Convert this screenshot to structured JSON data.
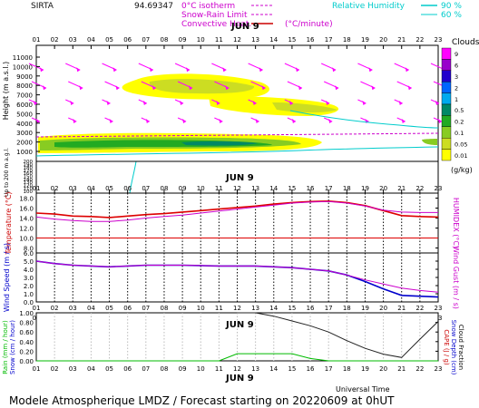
{
  "header": {
    "site": "SIRTA",
    "coords": "94.69347",
    "legend_isotherm": "0°C isotherm",
    "legend_snow_rain": "Snow-Rain Limit",
    "legend_convective": "Convective Heat.",
    "legend_convective_unit": "(°C/minute)",
    "legend_rh": "Relative Humidity",
    "rh_90": "90 %",
    "rh_60": "60 %"
  },
  "date_label": "JUN  9",
  "hours": [
    "01",
    "02",
    "03",
    "04",
    "05",
    "06",
    "07",
    "08",
    "09",
    "10",
    "11",
    "12",
    "13",
    "14",
    "15",
    "16",
    "17",
    "18",
    "19",
    "20",
    "21",
    "22",
    "23"
  ],
  "panel_top": {
    "ylabel_upper": "Height  (m  a.s.l.)",
    "ylabel_lower": "Up to 200 m a.g.l.",
    "yticks_upper": [
      "11000",
      "10000",
      "9000",
      "8000",
      "7000",
      "6000",
      "5000",
      "4000",
      "3000",
      "2000",
      "1000"
    ],
    "yticks_lower": [
      "200",
      "190",
      "180",
      "170",
      "160",
      "150",
      "140",
      "130",
      "120",
      "110",
      "100"
    ],
    "clouds_title": "Clouds",
    "clouds_levels": [
      "9",
      "6",
      "3",
      "2",
      "1",
      "0.5",
      "0.2",
      "0.1",
      "0.05",
      "0.01"
    ],
    "clouds_colors": [
      "#ff00ff",
      "#9900cc",
      "#2200cc",
      "#0066ff",
      "#00aaee",
      "#008866",
      "#22aa22",
      "#88cc22",
      "#ccdd22",
      "#ffff00"
    ],
    "clouds_unit": "(g/kg)"
  },
  "panel_temp": {
    "ylabel": "Temperature (°C)",
    "ylabel_right": "HUMIDEX (°C)",
    "yticks": [
      "18.0",
      "16.0",
      "14.0",
      "12.0",
      "10.0",
      "8.0"
    ]
  },
  "panel_wind": {
    "ylabel": "Wind Speed (m / s)",
    "ylabel_right": "Wind Gust (m / s)",
    "yticks": [
      "6.0",
      "5.0",
      "4.0",
      "3.0",
      "2.0",
      "1.0",
      "0.0"
    ]
  },
  "panel_rain": {
    "ylabel": "Rain (mm / hour)",
    "ylabel2": "Snow (cm / hour)",
    "ylabel_right": "CAPE (J / g)",
    "ylabel_right2": "Snow Depth (cm)",
    "ylabel_right3": "Cloud Fraction",
    "yticks": [
      "1.00",
      "0.80",
      "0.60",
      "0.40",
      "0.20",
      "0.00"
    ],
    "xlabel": "Universal Time"
  },
  "footer": "Modele Atmospherique LMDZ / Forecast starting on 20220609 at 0hUT",
  "chart_data": [
    {
      "type": "line",
      "title": "",
      "x": [
        "01",
        "02",
        "03",
        "04",
        "05",
        "06",
        "07",
        "08",
        "09",
        "10",
        "11",
        "12",
        "13",
        "14",
        "15",
        "16",
        "17",
        "18",
        "19",
        "20",
        "21",
        "22",
        "23"
      ],
      "ylim": [
        7,
        19
      ],
      "series": [
        {
          "name": "Temperature",
          "color": "#dd0000",
          "values": [
            15.0,
            14.8,
            14.4,
            14.3,
            14.1,
            14.4,
            14.7,
            14.9,
            15.2,
            15.5,
            15.8,
            16.1,
            16.4,
            16.8,
            17.1,
            17.3,
            17.4,
            17.1,
            16.5,
            15.5,
            14.5,
            14.3,
            14.2
          ]
        },
        {
          "name": "HUMIDEX",
          "color": "#cc00cc",
          "values": [
            14.2,
            13.8,
            13.5,
            13.3,
            13.3,
            13.6,
            14.0,
            14.3,
            14.6,
            15.0,
            15.4,
            15.8,
            16.2,
            16.6,
            17.0,
            17.2,
            17.3,
            17.0,
            16.4,
            15.6,
            15.2,
            15.1,
            15.1
          ]
        },
        {
          "name": "Reference",
          "color": "#dd0000",
          "values": [
            10.0,
            10.0,
            10.0,
            10.0,
            10.0,
            10.0,
            10.0,
            10.0,
            10.0,
            10.0,
            10.0,
            10.0,
            10.0,
            10.0,
            10.0,
            10.0,
            10.0,
            10.0,
            10.0,
            10.0,
            10.0,
            10.0,
            10.0
          ]
        }
      ]
    },
    {
      "type": "line",
      "title": "",
      "x": [
        "01",
        "02",
        "03",
        "04",
        "05",
        "06",
        "07",
        "08",
        "09",
        "10",
        "11",
        "12",
        "13",
        "14",
        "15",
        "16",
        "17",
        "18",
        "19",
        "20",
        "21",
        "22",
        "23"
      ],
      "ylim": [
        0,
        6
      ],
      "series": [
        {
          "name": "Wind Speed",
          "color": "#0000cc",
          "values": [
            5.0,
            4.7,
            4.5,
            4.4,
            4.3,
            4.4,
            4.5,
            4.5,
            4.5,
            4.45,
            4.4,
            4.4,
            4.4,
            4.3,
            4.2,
            4.0,
            3.8,
            3.3,
            2.5,
            1.6,
            0.8,
            0.7,
            0.6
          ]
        },
        {
          "name": "Wind Gust",
          "color": "#cc00cc",
          "values": [
            5.0,
            4.7,
            4.5,
            4.4,
            4.3,
            4.4,
            4.5,
            4.5,
            4.5,
            4.45,
            4.4,
            4.4,
            4.4,
            4.3,
            4.2,
            4.0,
            3.8,
            3.3,
            2.7,
            2.2,
            1.7,
            1.4,
            1.2
          ]
        }
      ]
    },
    {
      "type": "line",
      "title": "",
      "x": [
        "01",
        "02",
        "03",
        "04",
        "05",
        "06",
        "07",
        "08",
        "09",
        "10",
        "11",
        "12",
        "13",
        "14",
        "15",
        "16",
        "17",
        "18",
        "19",
        "20",
        "21",
        "22",
        "23"
      ],
      "ylim": [
        0,
        1
      ],
      "series": [
        {
          "name": "Cloud Fraction",
          "color": "#222222",
          "values": [
            null,
            null,
            null,
            null,
            null,
            null,
            null,
            null,
            null,
            null,
            null,
            1.0,
            1.0,
            0.93,
            0.83,
            0.73,
            0.6,
            0.42,
            0.26,
            0.14,
            0.07,
            0.45,
            0.82
          ]
        },
        {
          "name": "Rain",
          "color": "#00bb00",
          "values": [
            0,
            0,
            0,
            0,
            0,
            0,
            0,
            0,
            0,
            0,
            0,
            0.15,
            0.15,
            0.15,
            0.15,
            0.05,
            0,
            0,
            0,
            0,
            0,
            0,
            0
          ]
        }
      ]
    }
  ]
}
